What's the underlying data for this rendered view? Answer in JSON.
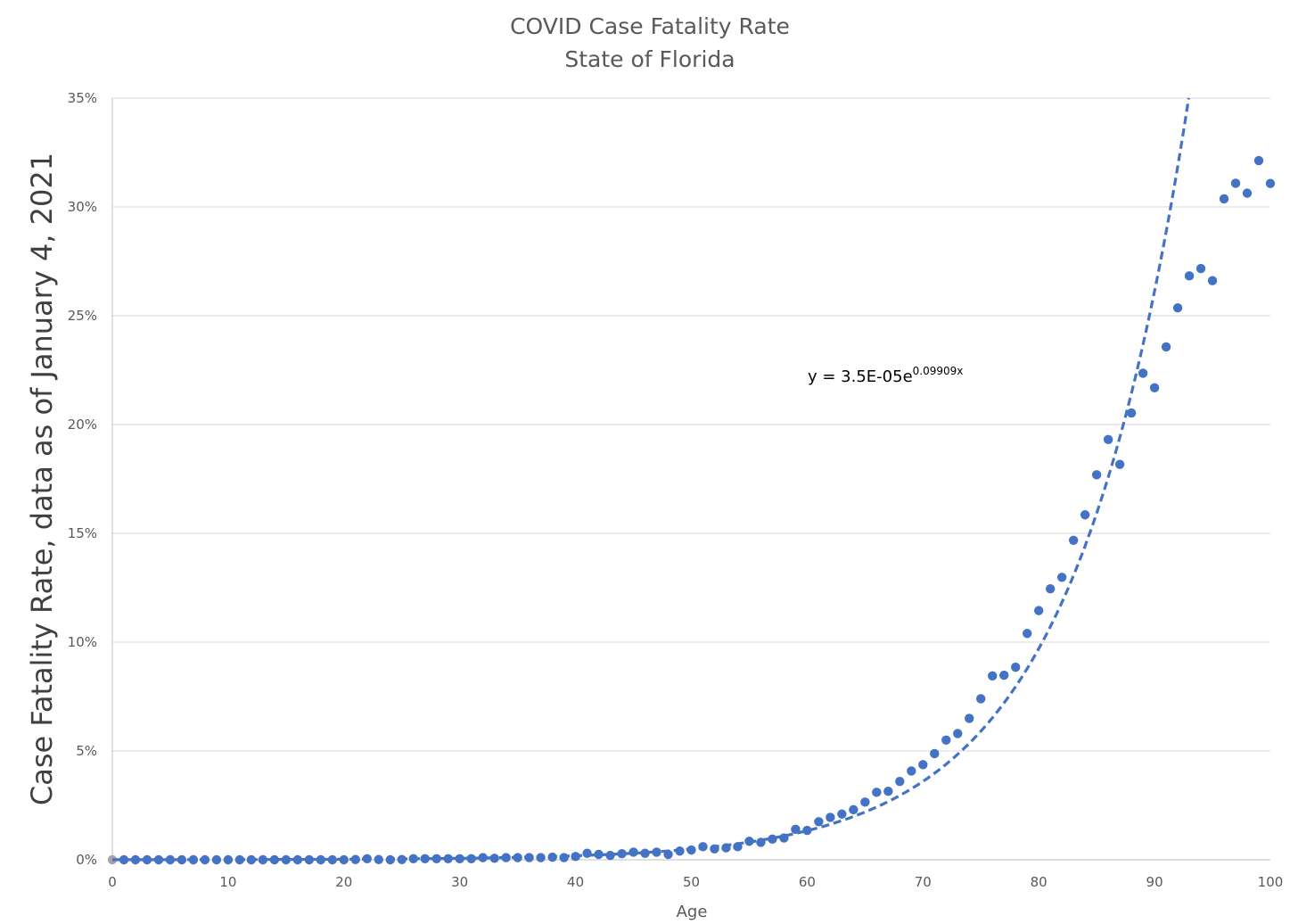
{
  "chart_data": {
    "type": "scatter",
    "title": "COVID Case Fatality Rate",
    "subtitle": "State of Florida",
    "xlabel": "Age",
    "ylabel": "Case Fatality Rate, data as of January 4, 2021",
    "xlim": [
      0,
      100
    ],
    "ylim": [
      0,
      0.35
    ],
    "x_ticks": [
      "0",
      "10",
      "20",
      "30",
      "40",
      "50",
      "60",
      "70",
      "80",
      "90",
      "100"
    ],
    "y_ticks": [
      "0%",
      "5%",
      "10%",
      "15%",
      "20%",
      "25%",
      "30%",
      "35%"
    ],
    "grid": "horizontal",
    "legend": "none",
    "colors": {
      "points": "#4472c4",
      "first_point": "#a5a5a5",
      "trendline": "#4472c4",
      "grid": "#d9d9d9",
      "axis": "#bfbfbf"
    },
    "trendline": {
      "type": "exponential",
      "a": 3.5e-05,
      "b": 0.09909,
      "style": "dashed",
      "label_main": "y = 3.5E-05e",
      "label_exp": "0.09909x"
    },
    "series": [
      {
        "x": [
          0,
          1,
          2,
          3,
          4,
          5,
          6,
          7,
          8,
          9,
          10,
          11,
          12,
          13,
          14,
          15,
          16,
          17,
          18,
          19,
          20,
          21,
          22,
          23,
          24,
          25,
          26,
          27,
          28,
          29,
          30,
          31,
          32,
          33,
          34,
          35,
          36,
          37,
          38,
          39,
          40,
          41,
          42,
          43,
          44,
          45,
          46,
          47,
          48,
          49,
          50,
          51,
          52,
          53,
          54,
          55,
          56,
          57,
          58,
          59,
          60,
          61,
          62,
          63,
          64,
          65,
          66,
          67,
          68,
          69,
          70,
          71,
          72,
          73,
          74,
          75,
          76,
          77,
          78,
          79,
          80,
          81,
          82,
          83,
          84,
          85,
          86,
          87,
          88,
          89,
          90,
          91,
          92,
          93,
          94,
          95,
          96,
          97,
          98,
          99,
          100
        ],
        "y": [
          0,
          0,
          0,
          0,
          0,
          0,
          0,
          0,
          0,
          0,
          0,
          0,
          0,
          0,
          0,
          0,
          0,
          0,
          0,
          0,
          0,
          0.0001,
          0.0005,
          0.0001,
          0,
          0.0001,
          0.0005,
          0.0005,
          0.0005,
          0.0005,
          0.0005,
          0.0005,
          0.001,
          0.0007,
          0.001,
          0.001,
          0.001,
          0.001,
          0.0012,
          0.001,
          0.0015,
          0.003,
          0.0025,
          0.002,
          0.0028,
          0.0035,
          0.003,
          0.0035,
          0.0025,
          0.004,
          0.0045,
          0.006,
          0.005,
          0.0055,
          0.006,
          0.0085,
          0.008,
          0.0095,
          0.01,
          0.014,
          0.0135,
          0.0175,
          0.0195,
          0.021,
          0.023,
          0.0265,
          0.031,
          0.0315,
          0.036,
          0.0408,
          0.0437,
          0.0488,
          0.055,
          0.058,
          0.065,
          0.074,
          0.0845,
          0.0848,
          0.0885,
          0.104,
          0.1145,
          0.1245,
          0.1298,
          0.1468,
          0.1585,
          0.1769,
          0.1931,
          0.1817,
          0.2053,
          0.2236,
          0.2169,
          0.2357,
          0.2536,
          0.2683,
          0.2717,
          0.2661,
          0.3037,
          0.3109,
          0.3063,
          0.3213,
          0.3108
        ]
      }
    ]
  }
}
